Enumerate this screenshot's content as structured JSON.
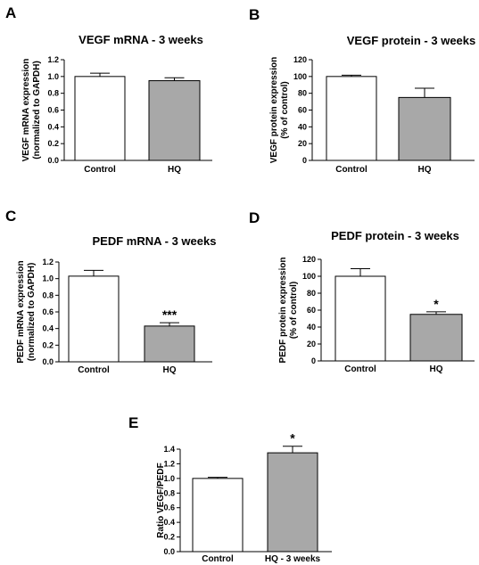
{
  "colors": {
    "control_bar": "#ffffff",
    "hq_bar": "#a8a8a8",
    "stroke": "#000000"
  },
  "chart_data": [
    {
      "panel": "A",
      "type": "bar",
      "title": "VEGF mRNA - 3 weeks",
      "ylabel": [
        "VEGF mRNA expression",
        "(normalized to GAPDH)"
      ],
      "categories": [
        "Control",
        "HQ"
      ],
      "values": [
        1.0,
        0.95
      ],
      "errors": [
        0.04,
        0.035
      ],
      "significance": [
        "",
        ""
      ],
      "ylim": [
        0,
        1.2
      ],
      "yticks": [
        0.0,
        0.2,
        0.4,
        0.6,
        0.8,
        1.0,
        1.2
      ],
      "ytick_labels": [
        "0.0",
        "0.2",
        "0.4",
        "0.6",
        "0.8",
        "1.0",
        "1.2"
      ]
    },
    {
      "panel": "B",
      "type": "bar",
      "title": "VEGF protein - 3 weeks",
      "ylabel": [
        "VEGF protein expression",
        "(% of control)"
      ],
      "categories": [
        "Control",
        "HQ"
      ],
      "values": [
        100,
        75
      ],
      "errors": [
        1.5,
        11
      ],
      "significance": [
        "",
        ""
      ],
      "ylim": [
        0,
        120
      ],
      "yticks": [
        0,
        20,
        40,
        60,
        80,
        100,
        120
      ],
      "ytick_labels": [
        "0",
        "20",
        "40",
        "60",
        "80",
        "100",
        "120"
      ]
    },
    {
      "panel": "C",
      "type": "bar",
      "title": "PEDF mRNA - 3 weeks",
      "ylabel": [
        "PEDF mRNA expression",
        "(normalized to GAPDH)"
      ],
      "categories": [
        "Control",
        "HQ"
      ],
      "values": [
        1.03,
        0.43
      ],
      "errors": [
        0.07,
        0.04
      ],
      "significance": [
        "",
        "***"
      ],
      "ylim": [
        0,
        1.2
      ],
      "yticks": [
        0.0,
        0.2,
        0.4,
        0.6,
        0.8,
        1.0,
        1.2
      ],
      "ytick_labels": [
        "0.0",
        "0.2",
        "0.4",
        "0.6",
        "0.8",
        "1.0",
        "1.2"
      ]
    },
    {
      "panel": "D",
      "type": "bar",
      "title": "PEDF protein - 3 weeks",
      "ylabel": [
        "PEDF protein expression",
        "(% of control)"
      ],
      "categories": [
        "Control",
        "HQ"
      ],
      "values": [
        100,
        55
      ],
      "errors": [
        9,
        3
      ],
      "significance": [
        "",
        "*"
      ],
      "ylim": [
        0,
        120
      ],
      "yticks": [
        0,
        20,
        40,
        60,
        80,
        100,
        120
      ],
      "ytick_labels": [
        "0",
        "20",
        "40",
        "60",
        "80",
        "100",
        "120"
      ]
    },
    {
      "panel": "E",
      "type": "bar",
      "title": "",
      "ylabel": [
        "Ratio VEGF/PEDF"
      ],
      "categories": [
        "Control",
        "HQ - 3 weeks"
      ],
      "values": [
        1.0,
        1.35
      ],
      "errors": [
        0.015,
        0.09
      ],
      "significance": [
        "",
        "*"
      ],
      "ylim": [
        0,
        1.4
      ],
      "yticks": [
        0.0,
        0.2,
        0.4,
        0.6,
        0.8,
        1.0,
        1.2,
        1.4
      ],
      "ytick_labels": [
        "0.0",
        "0.2",
        "0.4",
        "0.6",
        "0.8",
        "1.0",
        "1.2",
        "1.4"
      ]
    }
  ]
}
